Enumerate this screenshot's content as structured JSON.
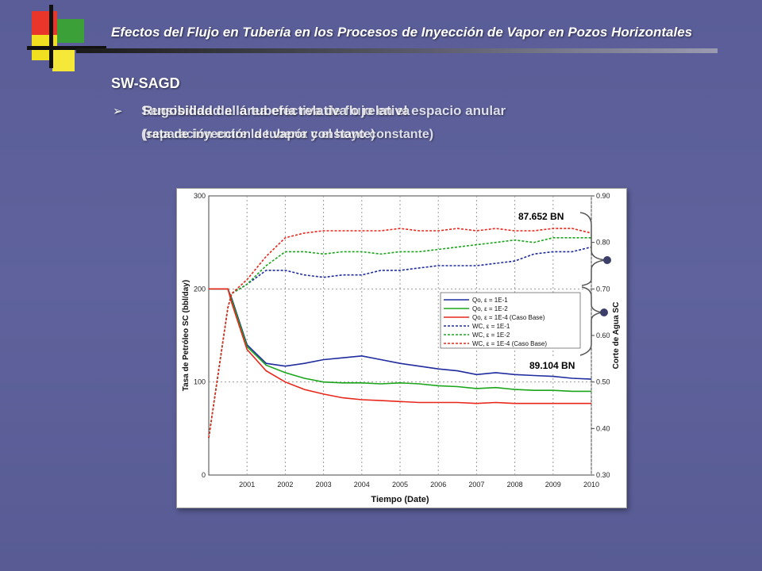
{
  "header": {
    "title": "Efectos del Flujo en Tubería en los Procesos de Inyección de Vapor en Pozos Horizontales"
  },
  "section": {
    "title": "SW-SAGD",
    "bullet_line1_a": "Sensibilidad al área efectiva de flujo en el espacio anular",
    "bullet_line1_b": "Rugosidad de la tubería relativa o relativa",
    "bullet_line2_a": "(separación entre la tubería y el hoyo constante)",
    "bullet_line2_b": "(rata de inyección de vapor constante)"
  },
  "colors": {
    "accent_red": "#e8362a",
    "accent_yellow": "#f0e020",
    "accent_green": "#3aa037",
    "series_blue": "#1f2b9e",
    "series_green": "#1aa51a",
    "series_red": "#e8261a"
  },
  "chart_data": {
    "type": "line",
    "xlabel": "Tiempo (Date)",
    "ylabel": "Tasa de Petróleo SC (bbl/day)",
    "y2label": "Corte de Agua SC",
    "xlim": [
      2000,
      2010
    ],
    "ylim": [
      0,
      300
    ],
    "y2lim": [
      0.3,
      0.9
    ],
    "x_ticks": [
      "2001",
      "2002",
      "2003",
      "2004",
      "2005",
      "2006",
      "2007",
      "2008",
      "2009",
      "2010"
    ],
    "y_ticks": [
      "0",
      "100",
      "200",
      "300"
    ],
    "y2_ticks": [
      "0.30",
      "0.40",
      "0.50",
      "0.60",
      "0.70",
      "0.80",
      "0.90"
    ],
    "grid": true,
    "legend_position": "right-middle",
    "x": [
      2000.0,
      2000.5,
      2000.6,
      2001.0,
      2001.5,
      2002.0,
      2002.5,
      2003.0,
      2003.5,
      2004.0,
      2004.5,
      2005.0,
      2005.5,
      2006.0,
      2006.5,
      2007.0,
      2007.5,
      2008.0,
      2008.5,
      2009.0,
      2009.5,
      2010.0
    ],
    "series": [
      {
        "name": "Qo, ε = 1E-1",
        "axis": "left",
        "style": "solid",
        "color": "#1f2b9e",
        "values": [
          200,
          200,
          190,
          140,
          120,
          117,
          120,
          124,
          126,
          128,
          124,
          120,
          117,
          114,
          112,
          108,
          110,
          108,
          107,
          106,
          104,
          103
        ]
      },
      {
        "name": "Qo, ε = 1E-2",
        "axis": "left",
        "style": "solid",
        "color": "#1aa51a",
        "values": [
          200,
          200,
          188,
          138,
          118,
          110,
          104,
          100,
          99,
          99,
          98,
          99,
          98,
          96,
          95,
          93,
          94,
          92,
          91,
          91,
          90,
          90
        ]
      },
      {
        "name": "Qo, ε = 1E-4 (Caso Base)",
        "axis": "left",
        "style": "solid",
        "color": "#e8261a",
        "values": [
          200,
          200,
          185,
          135,
          112,
          100,
          92,
          87,
          83,
          81,
          80,
          79,
          78,
          78,
          78,
          77,
          78,
          77,
          77,
          77,
          77,
          77
        ]
      },
      {
        "name": "WC, ε = 1E-1",
        "axis": "right",
        "style": "dashed",
        "color": "#1f2b9e",
        "values": [
          0.38,
          0.66,
          0.69,
          0.71,
          0.74,
          0.74,
          0.73,
          0.725,
          0.73,
          0.73,
          0.74,
          0.74,
          0.745,
          0.75,
          0.75,
          0.75,
          0.755,
          0.76,
          0.775,
          0.78,
          0.78,
          0.79
        ]
      },
      {
        "name": "WC, ε = 1E-2",
        "axis": "right",
        "style": "dashed",
        "color": "#1aa51a",
        "values": [
          0.38,
          0.66,
          0.69,
          0.71,
          0.75,
          0.78,
          0.78,
          0.775,
          0.78,
          0.78,
          0.775,
          0.78,
          0.78,
          0.785,
          0.79,
          0.795,
          0.8,
          0.805,
          0.8,
          0.81,
          0.81,
          0.81
        ]
      },
      {
        "name": "WC, ε = 1E-4 (Caso Base)",
        "axis": "right",
        "style": "dashed",
        "color": "#e8261a",
        "values": [
          0.38,
          0.66,
          0.69,
          0.72,
          0.77,
          0.81,
          0.82,
          0.825,
          0.825,
          0.825,
          0.825,
          0.83,
          0.825,
          0.825,
          0.83,
          0.825,
          0.83,
          0.825,
          0.825,
          0.83,
          0.83,
          0.82
        ]
      }
    ],
    "annotations": [
      "87.652 BN",
      "89.104 BN"
    ]
  }
}
